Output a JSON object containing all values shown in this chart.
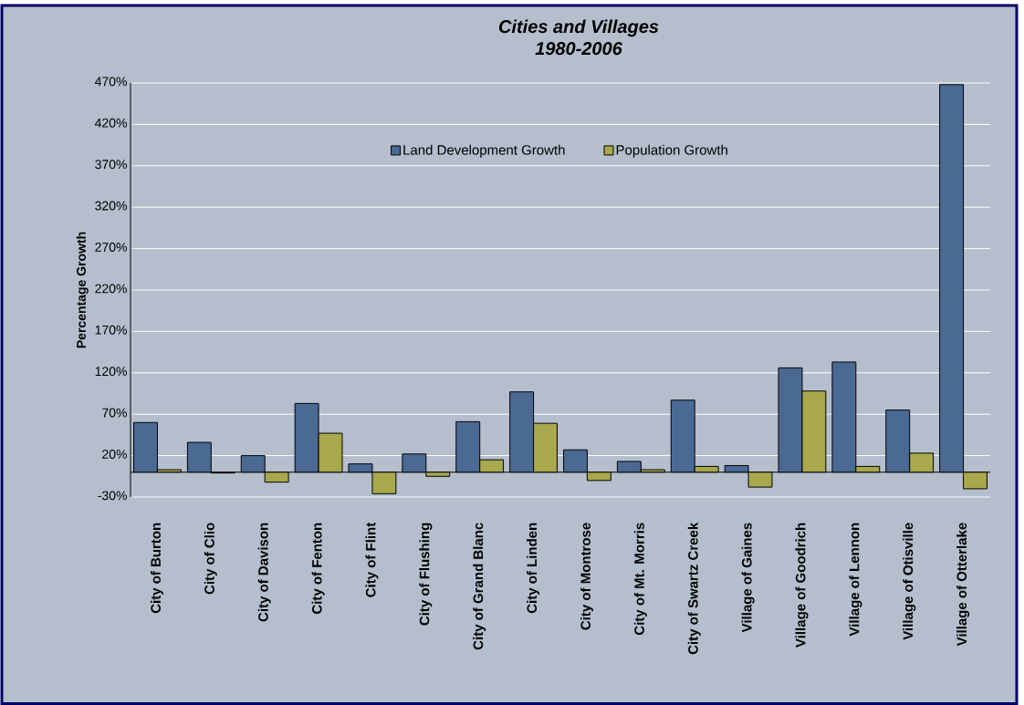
{
  "chart_data": {
    "type": "bar",
    "title": "Cities and Villages",
    "subtitle": "1980-2006",
    "ylabel": "Percentage Growth",
    "categories": [
      "City of Burton",
      "City of Clio",
      "City of Davison",
      "City of Fenton",
      "City of Flint",
      "City of Flushing",
      "City of Grand Blanc",
      "City of Linden",
      "City of Montrose",
      "City of Mt. Morris",
      "City of Swartz Creek",
      "Village of Gaines",
      "Village of Goodrich",
      "Village of Lennon",
      "Village of Otisville",
      "Village of Otterlake"
    ],
    "series": [
      {
        "name": "Land Development Growth",
        "color": "#4a6a94",
        "values": [
          60,
          36,
          20,
          83,
          10,
          22,
          61,
          97,
          27,
          13,
          87,
          8,
          126,
          133,
          75,
          468
        ]
      },
      {
        "name": "Population Growth",
        "color": "#a8a84c",
        "values": [
          3,
          -1,
          -12,
          47,
          -26,
          -5,
          15,
          59,
          -10,
          3,
          7,
          -18,
          98,
          7,
          23,
          -20
        ]
      }
    ],
    "ylim": [
      -30,
      470
    ],
    "yticks": [
      {
        "value": -30,
        "label": "-30%"
      },
      {
        "value": 20,
        "label": "20%"
      },
      {
        "value": 70,
        "label": "70%"
      },
      {
        "value": 120,
        "label": "120%"
      },
      {
        "value": 170,
        "label": "170%"
      },
      {
        "value": 220,
        "label": "220%"
      },
      {
        "value": 270,
        "label": "270%"
      },
      {
        "value": 320,
        "label": "320%"
      },
      {
        "value": 370,
        "label": "370%"
      },
      {
        "value": 420,
        "label": "420%"
      },
      {
        "value": 470,
        "label": "470%"
      }
    ],
    "grid": "y",
    "legend": "top"
  }
}
